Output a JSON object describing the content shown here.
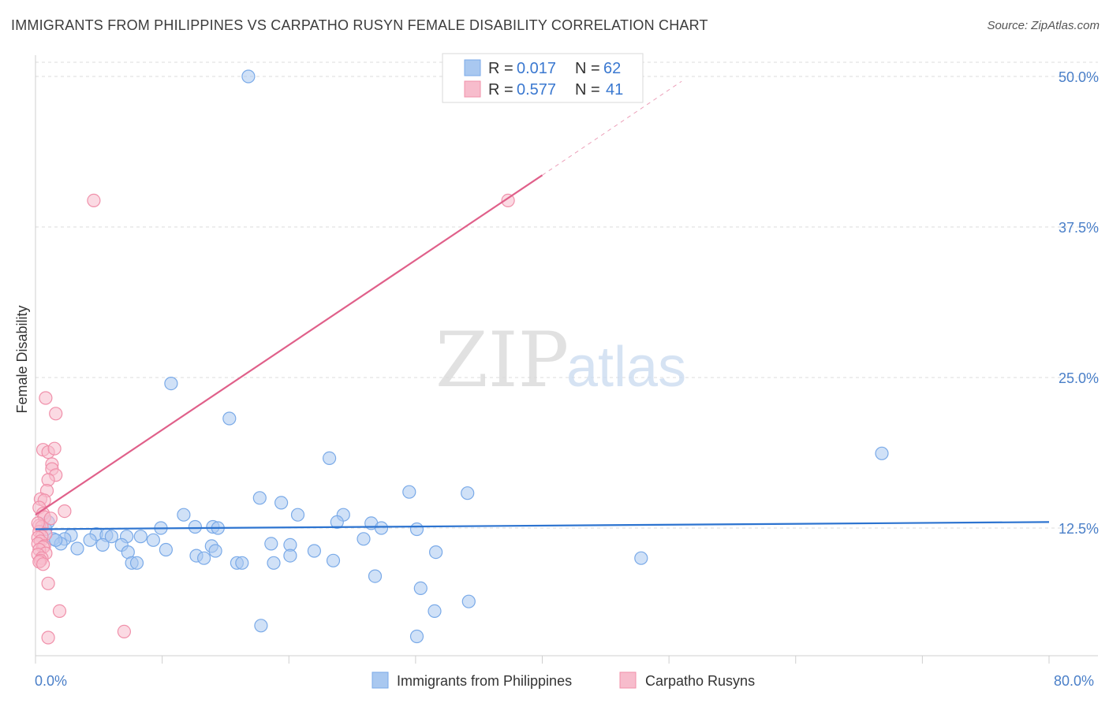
{
  "header": {
    "title": "IMMIGRANTS FROM PHILIPPINES VS CARPATHO RUSYN FEMALE DISABILITY CORRELATION CHART",
    "source": "Source: ZipAtlas.com"
  },
  "watermark": {
    "zip": "ZIP",
    "atlas": "atlas"
  },
  "chart_data": {
    "type": "scatter",
    "title": "IMMIGRANTS FROM PHILIPPINES VS CARPATHO RUSYN FEMALE DISABILITY CORRELATION CHART",
    "xlabel": "",
    "ylabel": "Female Disability",
    "xlim": [
      0,
      80
    ],
    "ylim": [
      0,
      52
    ],
    "x_tick_labels": {
      "min": "0.0%",
      "max": "80.0%"
    },
    "y_ticks": [
      12.5,
      25.0,
      37.5,
      50.0
    ],
    "y_tick_labels": [
      "12.5%",
      "25.0%",
      "37.5%",
      "50.0%"
    ],
    "grid": true,
    "legend": {
      "placement": "top-center",
      "entries": [
        {
          "r_label": "R =",
          "r": "0.017",
          "n_label": "N =",
          "n": "62"
        },
        {
          "r_label": "R =",
          "r": "0.577",
          "n_label": "N =",
          "n": "41"
        }
      ]
    },
    "series": [
      {
        "name": "Immigrants from Philippines",
        "color": "#7aaae8",
        "fill": "#a9c8f0",
        "line_color": "#2d74d0",
        "trend": {
          "x0": 0,
          "y0": 12.4,
          "x1": 80,
          "y1": 13.0
        },
        "points": [
          [
            16.8,
            50.0
          ],
          [
            10.7,
            24.5
          ],
          [
            15.3,
            21.6
          ],
          [
            23.2,
            18.3
          ],
          [
            66.8,
            18.7
          ],
          [
            29.5,
            15.5
          ],
          [
            34.1,
            15.4
          ],
          [
            17.7,
            15.0
          ],
          [
            19.4,
            14.6
          ],
          [
            11.7,
            13.6
          ],
          [
            20.7,
            13.6
          ],
          [
            24.3,
            13.6
          ],
          [
            23.8,
            13.0
          ],
          [
            12.6,
            12.6
          ],
          [
            26.5,
            12.9
          ],
          [
            27.3,
            12.5
          ],
          [
            9.9,
            12.5
          ],
          [
            14.0,
            12.6
          ],
          [
            14.4,
            12.5
          ],
          [
            30.1,
            12.4
          ],
          [
            1.0,
            13.0
          ],
          [
            0.8,
            12.4
          ],
          [
            2.8,
            11.9
          ],
          [
            4.8,
            12.0
          ],
          [
            5.6,
            11.9
          ],
          [
            1.4,
            11.6
          ],
          [
            2.3,
            11.6
          ],
          [
            4.3,
            11.5
          ],
          [
            6.0,
            11.8
          ],
          [
            7.2,
            11.8
          ],
          [
            8.3,
            11.8
          ],
          [
            9.3,
            11.5
          ],
          [
            2.0,
            11.2
          ],
          [
            5.3,
            11.1
          ],
          [
            6.8,
            11.1
          ],
          [
            13.9,
            11.0
          ],
          [
            25.9,
            11.6
          ],
          [
            18.6,
            11.2
          ],
          [
            20.1,
            11.1
          ],
          [
            10.3,
            10.7
          ],
          [
            3.3,
            10.8
          ],
          [
            1.6,
            11.5
          ],
          [
            7.3,
            10.5
          ],
          [
            14.2,
            10.6
          ],
          [
            22.0,
            10.6
          ],
          [
            12.7,
            10.2
          ],
          [
            13.3,
            10.0
          ],
          [
            20.1,
            10.2
          ],
          [
            31.6,
            10.5
          ],
          [
            47.8,
            10.0
          ],
          [
            23.5,
            9.8
          ],
          [
            7.6,
            9.6
          ],
          [
            8.0,
            9.6
          ],
          [
            15.9,
            9.6
          ],
          [
            16.3,
            9.6
          ],
          [
            18.8,
            9.6
          ],
          [
            26.8,
            8.5
          ],
          [
            30.4,
            7.5
          ],
          [
            31.5,
            5.6
          ],
          [
            34.2,
            6.4
          ],
          [
            17.8,
            4.4
          ],
          [
            30.1,
            3.5
          ]
        ]
      },
      {
        "name": "Carpatho Rusyns",
        "color": "#f090aa",
        "fill": "#f7bccc",
        "line_color": "#e0608a",
        "trend": {
          "x0": 0,
          "y0": 13.6,
          "x1": 40,
          "y1": 41.8
        },
        "trend_ext": {
          "x0": 40,
          "y0": 41.8,
          "x1": 51,
          "y1": 49.6
        },
        "points": [
          [
            4.6,
            39.7
          ],
          [
            37.3,
            39.7
          ],
          [
            0.8,
            23.3
          ],
          [
            1.6,
            22.0
          ],
          [
            0.6,
            19.0
          ],
          [
            1.0,
            18.8
          ],
          [
            1.5,
            19.1
          ],
          [
            1.3,
            17.8
          ],
          [
            1.3,
            17.4
          ],
          [
            1.6,
            16.9
          ],
          [
            1.0,
            16.5
          ],
          [
            0.9,
            15.6
          ],
          [
            0.4,
            14.9
          ],
          [
            0.7,
            14.8
          ],
          [
            0.3,
            14.2
          ],
          [
            2.3,
            13.9
          ],
          [
            0.6,
            13.7
          ],
          [
            0.7,
            13.4
          ],
          [
            1.2,
            13.3
          ],
          [
            0.3,
            12.7
          ],
          [
            0.5,
            12.6
          ],
          [
            0.3,
            12.2
          ],
          [
            0.8,
            12.0
          ],
          [
            0.5,
            11.8
          ],
          [
            0.2,
            11.7
          ],
          [
            0.4,
            11.4
          ],
          [
            0.2,
            11.2
          ],
          [
            0.7,
            11.0
          ],
          [
            0.6,
            10.9
          ],
          [
            0.3,
            10.7
          ],
          [
            0.8,
            10.4
          ],
          [
            0.2,
            10.3
          ],
          [
            0.5,
            10.0
          ],
          [
            0.4,
            9.8
          ],
          [
            0.3,
            9.7
          ],
          [
            0.6,
            9.5
          ],
          [
            1.0,
            7.9
          ],
          [
            1.9,
            5.6
          ],
          [
            7.0,
            3.9
          ],
          [
            1.0,
            3.4
          ],
          [
            0.2,
            12.9
          ]
        ]
      }
    ]
  },
  "bottom_legend": [
    {
      "label": "Immigrants from Philippines"
    },
    {
      "label": "Carpatho Rusyns"
    }
  ]
}
